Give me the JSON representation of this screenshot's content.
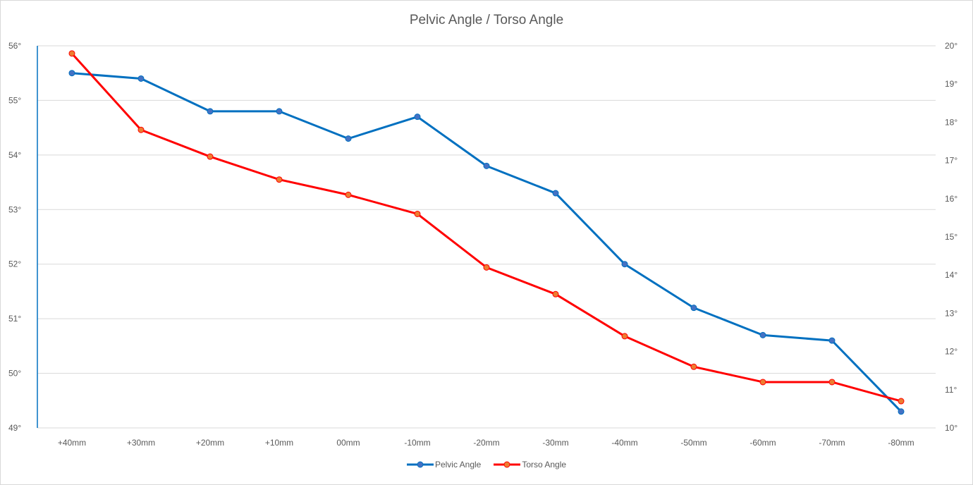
{
  "chart_data": {
    "type": "line",
    "title": "Pelvic Angle / Torso Angle",
    "xlabel": "",
    "categories": [
      "+40mm",
      "+30mm",
      "+20mm",
      "+10mm",
      "00mm",
      "-10mm",
      "-20mm",
      "-30mm",
      "-40mm",
      "-50mm",
      "-60mm",
      "-70mm",
      "-80mm"
    ],
    "left_axis": {
      "label": "",
      "ylim": [
        49,
        56
      ],
      "ticks": [
        "49°",
        "50°",
        "51°",
        "52°",
        "53°",
        "54°",
        "55°",
        "56°"
      ]
    },
    "right_axis": {
      "label": "",
      "ylim": [
        10,
        20
      ],
      "ticks": [
        "10°",
        "11°",
        "12°",
        "13°",
        "14°",
        "15°",
        "16°",
        "17°",
        "18°",
        "19°",
        "20°"
      ]
    },
    "series": [
      {
        "name": "Pelvic Angle",
        "axis": "left",
        "color": "#0070C0",
        "marker_color": "#4472C4",
        "values": [
          55.5,
          55.4,
          54.8,
          54.8,
          54.3,
          54.7,
          53.8,
          53.3,
          52.0,
          51.2,
          50.7,
          50.6,
          49.3
        ]
      },
      {
        "name": "Torso Angle",
        "axis": "right",
        "color": "#FF0000",
        "marker_color": "#ED7D31",
        "values": [
          19.8,
          17.8,
          17.1,
          16.5,
          16.1,
          15.6,
          14.2,
          13.5,
          12.4,
          11.6,
          11.2,
          11.2,
          10.7
        ]
      }
    ],
    "grid": true,
    "legend_position": "bottom"
  },
  "legend": {
    "pelvic": "Pelvic Angle",
    "torso": "Torso Angle"
  }
}
